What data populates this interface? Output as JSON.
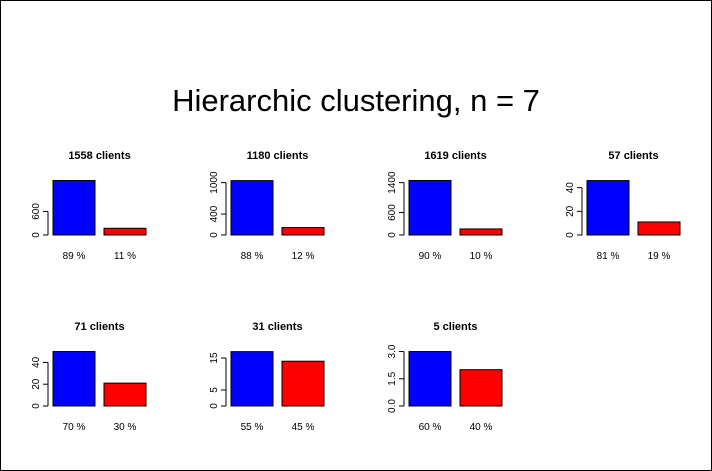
{
  "title": "Hierarchic clustering, n = 7",
  "colors": {
    "bar1": "#0000ff",
    "bar2": "#ff0000"
  },
  "chart_data": [
    {
      "type": "bar",
      "title": "1558 clients",
      "categories": [
        "89 %",
        "11 %"
      ],
      "values": [
        1387,
        171
      ],
      "yticks": [
        0,
        600
      ],
      "ylim": [
        0,
        1400
      ]
    },
    {
      "type": "bar",
      "title": "1180 clients",
      "categories": [
        "88 %",
        "12 %"
      ],
      "values": [
        1038,
        142
      ],
      "yticks": [
        0,
        400,
        1000
      ],
      "ylim": [
        0,
        1050
      ]
    },
    {
      "type": "bar",
      "title": "1619 clients",
      "categories": [
        "90 %",
        "10 %"
      ],
      "values": [
        1457,
        162
      ],
      "yticks": [
        0,
        600,
        1400
      ],
      "ylim": [
        0,
        1470
      ]
    },
    {
      "type": "bar",
      "title": "57 clients",
      "categories": [
        "81 %",
        "19 %"
      ],
      "values": [
        46,
        11
      ],
      "yticks": [
        0,
        20,
        40
      ],
      "ylim": [
        0,
        46.5
      ]
    },
    {
      "type": "bar",
      "title": "71 clients",
      "categories": [
        "70 %",
        "30 %"
      ],
      "values": [
        50,
        21
      ],
      "yticks": [
        0,
        20,
        40
      ],
      "ylim": [
        0,
        50.5
      ]
    },
    {
      "type": "bar",
      "title": "31 clients",
      "categories": [
        "55 %",
        "45 %"
      ],
      "values": [
        17,
        14
      ],
      "yticks": [
        0,
        5,
        15
      ],
      "ylim": [
        0,
        17.2
      ]
    },
    {
      "type": "bar",
      "title": "5 clients",
      "categories": [
        "60 %",
        "40 %"
      ],
      "values": [
        3,
        2
      ],
      "yticks": [
        "0.0",
        "1.5",
        "3.0"
      ],
      "ylim": [
        0,
        3.03
      ]
    }
  ]
}
